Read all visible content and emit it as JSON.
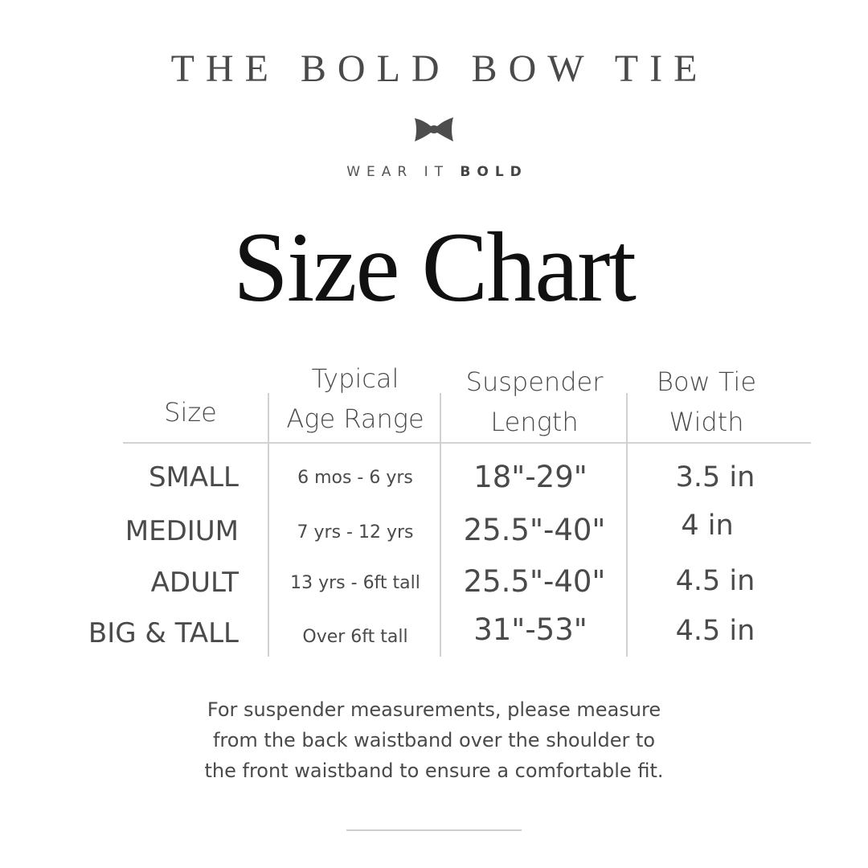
{
  "brand": {
    "name": "THE BOLD BOW TIE",
    "tagline_light": "WEAR IT",
    "tagline_bold": "BOLD",
    "icon": "bow-tie-icon",
    "icon_color": "#4d4d4d"
  },
  "title": "Size Chart",
  "table": {
    "headers": [
      {
        "line1": "Size",
        "line2": ""
      },
      {
        "line1": "Typical",
        "line2": "Age Range"
      },
      {
        "line1": "Suspender",
        "line2": "Length"
      },
      {
        "line1": "Bow Tie",
        "line2": "Width"
      }
    ],
    "rows": [
      {
        "size": "SMALL",
        "age": "6 mos - 6 yrs",
        "length": "18\"-29\"",
        "width": "3.5 in"
      },
      {
        "size": "MEDIUM",
        "age": "7 yrs - 12 yrs",
        "length": "25.5\"-40\"",
        "width": "4 in"
      },
      {
        "size": "ADULT",
        "age": "13 yrs - 6ft tall",
        "length": "25.5\"-40\"",
        "width": "4.5 in"
      },
      {
        "size": "BIG & TALL",
        "age": "Over 6ft tall",
        "length": "31\"-53\"",
        "width": "4.5 in"
      }
    ]
  },
  "note": {
    "lines": [
      "For suspender measurements, please measure",
      "from the back waistband over the shoulder to",
      "the front waistband to ensure a comfortable fit."
    ]
  }
}
